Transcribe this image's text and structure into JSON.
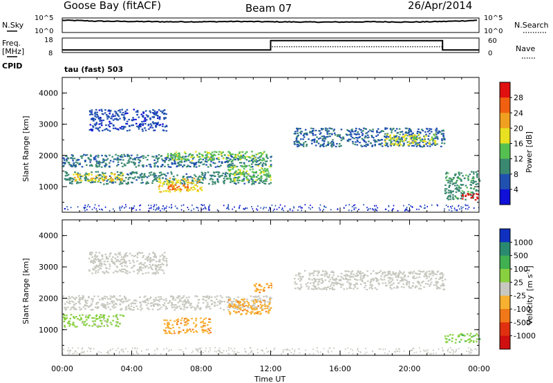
{
  "header": {
    "title": "Goose Bay (fitACF)",
    "beam": "Beam 07",
    "date": "26/Apr/2014"
  },
  "noise_panel": {
    "left_label": "N.Sky",
    "left_ticks": [
      "10^5",
      "10^0"
    ],
    "right_ticks": [
      "10^5",
      "10^0"
    ],
    "right_label": "N.Search"
  },
  "freq_panel": {
    "left_label": "Freq.",
    "left_unit": "[MHz]",
    "left_ticks": [
      "18",
      "8"
    ],
    "right_ticks": [
      "60",
      "0"
    ],
    "right_label": "Nave",
    "cpid_label": "CPID",
    "cpid_value": "tau (fast) 503",
    "freq_series": {
      "x": [
        0,
        12.0,
        12.0,
        21.9,
        21.9,
        24
      ],
      "y": [
        9.8,
        9.8,
        16.2,
        16.2,
        9.8,
        9.8
      ]
    },
    "nave_series": {
      "x": [
        0,
        12.0,
        12.0,
        21.9,
        21.9,
        24
      ],
      "y": [
        11,
        11,
        24,
        24,
        11,
        11
      ]
    }
  },
  "x_axis": {
    "label": "Time UT",
    "ticks": [
      "00:00",
      "04:00",
      "08:00",
      "12:00",
      "16:00",
      "20:00",
      "00:00"
    ],
    "range_hours": [
      0,
      24
    ]
  },
  "power_panel": {
    "ylabel": "Slant Range [km]",
    "yticks": [
      "1000",
      "2000",
      "3000",
      "4000"
    ],
    "colorbar_label": "Power [dB]",
    "colorbar_ticks": [
      "4",
      "8",
      "12",
      "16",
      "20",
      "24",
      "28"
    ],
    "colorbar_colors": [
      "#1010d8",
      "#2050b0",
      "#3a8870",
      "#55c050",
      "#e8e020",
      "#f0a020",
      "#f06010",
      "#e01010"
    ]
  },
  "velocity_panel": {
    "ylabel": "Slant Range [km]",
    "yticks": [
      "1000",
      "2000",
      "3000",
      "4000"
    ],
    "colorbar_label": "Velocity",
    "colorbar_unit": "[m s",
    "colorbar_sup": "-1",
    "colorbar_unit_end": "]",
    "colorbar_ticks": [
      "1000",
      "500",
      "100",
      "25",
      "-25",
      "-100",
      "-500",
      "-1000"
    ],
    "colorbar_colors": [
      "#1030c0",
      "#2a8a70",
      "#40b050",
      "#88d040",
      "#c8c8c0",
      "#f8b030",
      "#f07818",
      "#e03010",
      "#d01010"
    ]
  },
  "chart_data": [
    {
      "type": "line",
      "title": "N.Sky / N.Search",
      "x": [
        0,
        1,
        2,
        4,
        6,
        8,
        10,
        12,
        14,
        16,
        18,
        20,
        22,
        23,
        24
      ],
      "series": [
        {
          "name": "N.Sky",
          "values": [
            4.2,
            4.1,
            3.9,
            3.8,
            3.7,
            3.7,
            3.8,
            3.7,
            3.6,
            3.6,
            3.7,
            3.6,
            3.8,
            4.0,
            4.2
          ]
        }
      ],
      "ylim": [
        0,
        5
      ]
    },
    {
      "type": "heatmap",
      "xlabel": "Time UT",
      "ylabel": "Slant Range [km]",
      "xlim": [
        0,
        24
      ],
      "ylim": [
        180,
        4500
      ],
      "colorbar": "Power [dB]",
      "clim": [
        0,
        30
      ],
      "regions": [
        {
          "t0": 0.0,
          "t1": 12.0,
          "r0": 1100,
          "r1": 1500,
          "level": 9
        },
        {
          "t0": 0.5,
          "t1": 3.5,
          "r0": 1200,
          "r1": 1450,
          "level": 18
        },
        {
          "t0": 0.0,
          "t1": 12.0,
          "r0": 1650,
          "r1": 2050,
          "level": 8
        },
        {
          "t0": 6.0,
          "t1": 11.8,
          "r0": 1850,
          "r1": 2150,
          "level": 14
        },
        {
          "t0": 5.5,
          "t1": 8.0,
          "r0": 850,
          "r1": 1300,
          "level": 18
        },
        {
          "t0": 6.0,
          "t1": 7.2,
          "r0": 900,
          "r1": 1100,
          "level": 24
        },
        {
          "t0": 9.5,
          "t1": 12.0,
          "r0": 1200,
          "r1": 1700,
          "level": 14
        },
        {
          "t0": 1.5,
          "t1": 6.0,
          "r0": 2800,
          "r1": 3500,
          "level": 5
        },
        {
          "t0": 13.3,
          "t1": 22.0,
          "r0": 2300,
          "r1": 2900,
          "level": 7
        },
        {
          "t0": 18.5,
          "t1": 21.5,
          "r0": 2350,
          "r1": 2700,
          "level": 16
        },
        {
          "t0": 22.0,
          "t1": 24.0,
          "r0": 600,
          "r1": 1500,
          "level": 10
        },
        {
          "t0": 23.0,
          "t1": 23.9,
          "r0": 600,
          "r1": 800,
          "level": 28
        }
      ]
    },
    {
      "type": "heatmap",
      "xlabel": "Time UT",
      "ylabel": "Slant Range [km]",
      "xlim": [
        0,
        24
      ],
      "ylim": [
        180,
        4500
      ],
      "colorbar": "Velocity [m s-1]",
      "clim": [
        -1000,
        1000
      ],
      "regions": [
        {
          "t0": 0.0,
          "t1": 3.5,
          "r0": 1100,
          "r1": 1500,
          "level": 150
        },
        {
          "t0": 0.0,
          "t1": 12.0,
          "r0": 1650,
          "r1": 2100,
          "level": 0
        },
        {
          "t0": 5.8,
          "t1": 8.5,
          "r0": 900,
          "r1": 1400,
          "level": -300
        },
        {
          "t0": 9.5,
          "t1": 12.0,
          "r0": 1500,
          "r1": 2000,
          "level": -300
        },
        {
          "t0": 11.0,
          "t1": 12.0,
          "r0": 2200,
          "r1": 2500,
          "level": -300
        },
        {
          "t0": 13.3,
          "t1": 22.0,
          "r0": 2300,
          "r1": 2900,
          "level": 0
        },
        {
          "t0": 1.5,
          "t1": 6.0,
          "r0": 2800,
          "r1": 3500,
          "level": 0
        },
        {
          "t0": 22.0,
          "t1": 24.0,
          "r0": 600,
          "r1": 900,
          "level": 300
        }
      ]
    }
  ]
}
